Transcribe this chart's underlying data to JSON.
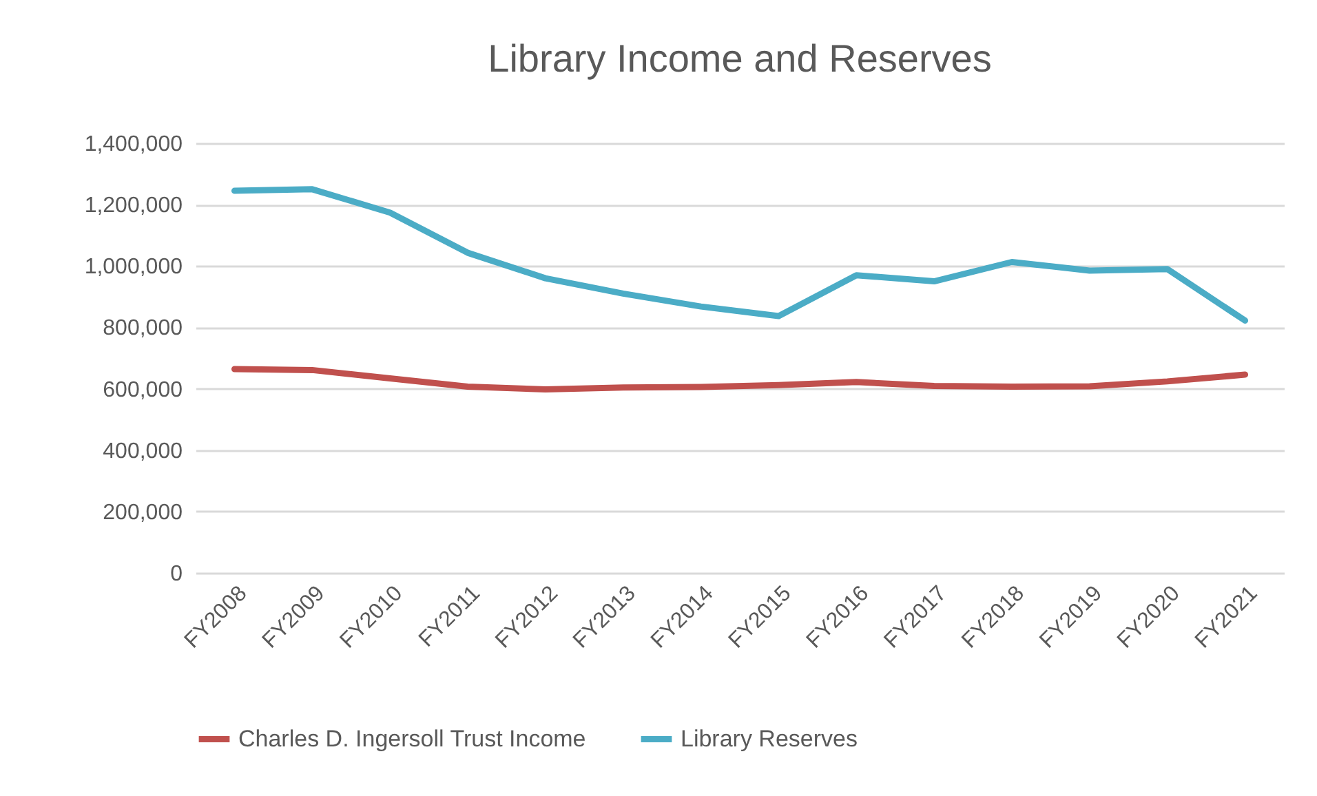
{
  "chart_data": {
    "type": "line",
    "title": "Library Income and Reserves",
    "categories": [
      "FY2008",
      "FY2009",
      "FY2010",
      "FY2011",
      "FY2012",
      "FY2013",
      "FY2014",
      "FY2015",
      "FY2016",
      "FY2017",
      "FY2018",
      "FY2019",
      "FY2020",
      "FY2021"
    ],
    "series": [
      {
        "name": "Charles D. Ingersoll Trust Income",
        "color": "#c0504d",
        "values": [
          664000,
          661000,
          634000,
          607000,
          598000,
          604000,
          606000,
          612000,
          622000,
          609000,
          607000,
          608000,
          624000,
          646000
        ]
      },
      {
        "name": "Library Reserves",
        "color": "#4bacc6",
        "values": [
          1245000,
          1250000,
          1174000,
          1043000,
          960000,
          910000,
          868000,
          837000,
          970000,
          950000,
          1013000,
          985000,
          990000,
          822000
        ]
      }
    ],
    "ylim": [
      0,
      1400000
    ],
    "yticks": [
      0,
      {
        "value": 200000,
        "label": "200,000"
      },
      {
        "value": 400000,
        "label": "400,000"
      },
      {
        "value": 600000,
        "label": "600,000"
      },
      {
        "value": 800000,
        "label": "800,000"
      },
      {
        "value": 1000000,
        "label": "1,000,000"
      },
      {
        "value": 1200000,
        "label": "1,200,000"
      },
      {
        "value": 1400000,
        "label": "1,400,000"
      }
    ],
    "grid": "y",
    "legend": "bottom",
    "marker": "none",
    "line_style": "solid"
  }
}
